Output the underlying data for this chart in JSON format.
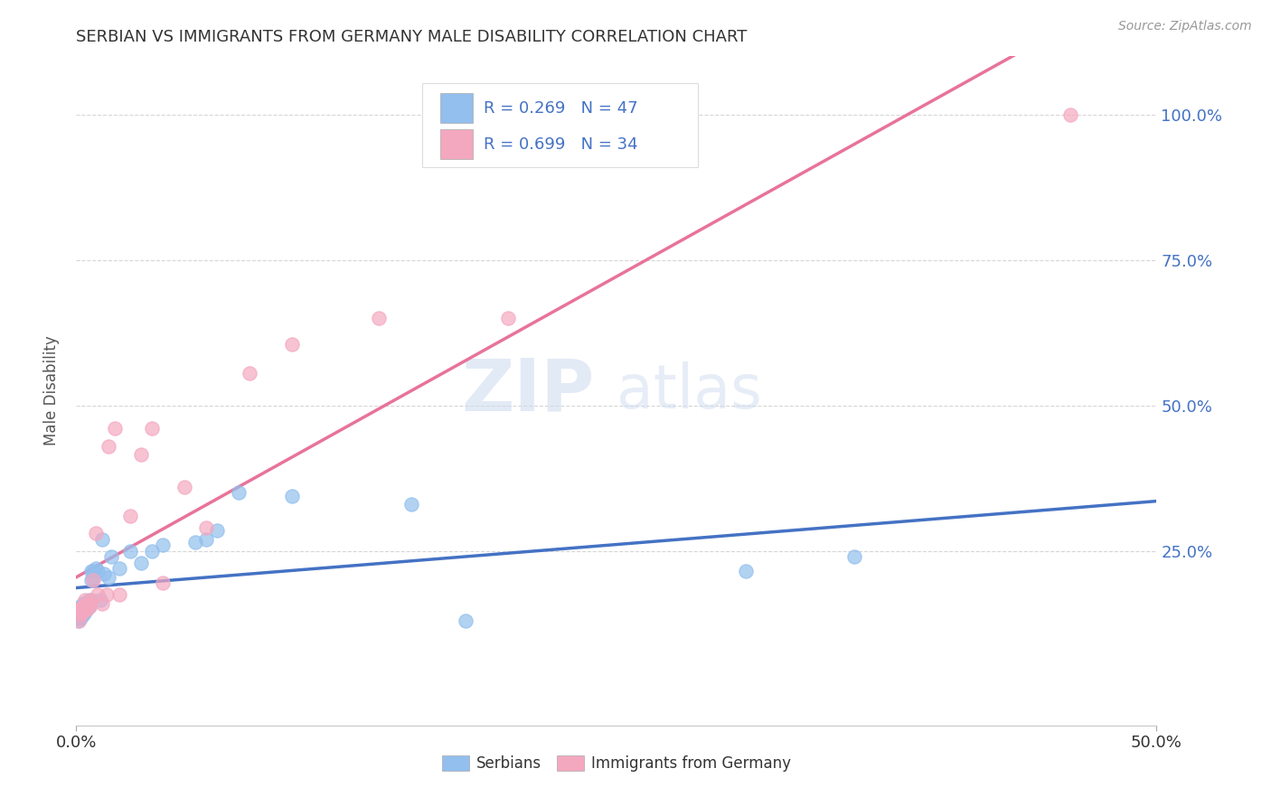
{
  "title": "SERBIAN VS IMMIGRANTS FROM GERMANY MALE DISABILITY CORRELATION CHART",
  "source": "Source: ZipAtlas.com",
  "ylabel": "Male Disability",
  "xlim": [
    0.0,
    0.5
  ],
  "ylim": [
    -0.05,
    1.1
  ],
  "xtick_labels": [
    "0.0%",
    "50.0%"
  ],
  "xtick_positions": [
    0.0,
    0.5
  ],
  "ytick_labels": [
    "25.0%",
    "50.0%",
    "75.0%",
    "100.0%"
  ],
  "ytick_positions": [
    0.25,
    0.5,
    0.75,
    1.0
  ],
  "watermark_zip": "ZIP",
  "watermark_atlas": "atlas",
  "legend_r_serbian": "R = 0.269",
  "legend_n_serbian": "N = 47",
  "legend_r_germany": "R = 0.699",
  "legend_n_germany": "N = 34",
  "legend_label_serbian": "Serbians",
  "legend_label_germany": "Immigrants from Germany",
  "color_serbian": "#92BFED",
  "color_germany": "#F4A8C0",
  "trendline_color_serbian": "#4472C4",
  "trendline_color_germany": "#E8739A",
  "background_color": "#FFFFFF",
  "grid_color": "#CCCCCC",
  "serbian_x": [
    0.001,
    0.001,
    0.001,
    0.001,
    0.002,
    0.002,
    0.002,
    0.002,
    0.002,
    0.003,
    0.003,
    0.003,
    0.003,
    0.003,
    0.004,
    0.004,
    0.004,
    0.005,
    0.005,
    0.005,
    0.006,
    0.006,
    0.007,
    0.007,
    0.008,
    0.008,
    0.009,
    0.01,
    0.011,
    0.012,
    0.013,
    0.015,
    0.016,
    0.02,
    0.025,
    0.03,
    0.035,
    0.04,
    0.055,
    0.06,
    0.065,
    0.075,
    0.1,
    0.155,
    0.18,
    0.31,
    0.36
  ],
  "serbian_y": [
    0.13,
    0.14,
    0.145,
    0.135,
    0.155,
    0.145,
    0.15,
    0.14,
    0.135,
    0.16,
    0.145,
    0.15,
    0.155,
    0.14,
    0.155,
    0.145,
    0.16,
    0.15,
    0.16,
    0.155,
    0.165,
    0.155,
    0.2,
    0.215,
    0.205,
    0.215,
    0.22,
    0.215,
    0.165,
    0.27,
    0.21,
    0.205,
    0.24,
    0.22,
    0.25,
    0.23,
    0.25,
    0.26,
    0.265,
    0.27,
    0.285,
    0.35,
    0.345,
    0.33,
    0.13,
    0.215,
    0.24
  ],
  "germany_x": [
    0.001,
    0.001,
    0.001,
    0.002,
    0.002,
    0.002,
    0.003,
    0.003,
    0.004,
    0.004,
    0.005,
    0.005,
    0.006,
    0.006,
    0.007,
    0.008,
    0.009,
    0.01,
    0.012,
    0.014,
    0.015,
    0.018,
    0.02,
    0.025,
    0.03,
    0.035,
    0.04,
    0.05,
    0.06,
    0.08,
    0.1,
    0.14,
    0.2,
    0.46
  ],
  "germany_y": [
    0.145,
    0.15,
    0.13,
    0.14,
    0.145,
    0.15,
    0.155,
    0.145,
    0.15,
    0.165,
    0.15,
    0.16,
    0.155,
    0.16,
    0.165,
    0.2,
    0.28,
    0.175,
    0.16,
    0.175,
    0.43,
    0.46,
    0.175,
    0.31,
    0.415,
    0.46,
    0.195,
    0.36,
    0.29,
    0.555,
    0.605,
    0.65,
    0.65,
    1.0
  ]
}
